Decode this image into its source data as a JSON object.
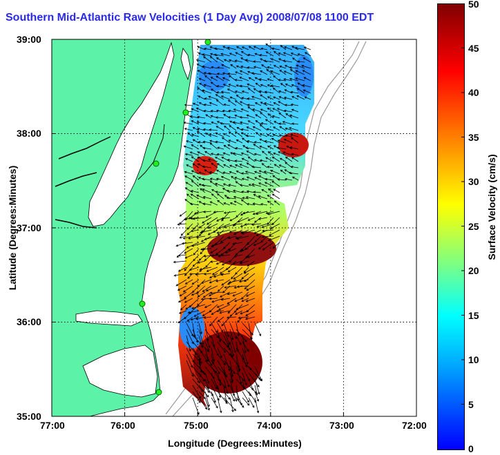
{
  "title": "Southern Mid-Atlantic Raw Velocities (1 Day Avg) 2008/07/08 1100 EDT",
  "axes": {
    "x_label": "Longitude (Degrees:Minutes)",
    "y_label": "Latitude (Degrees:Minutes)",
    "x_ticks": [
      "77:00",
      "76:00",
      "75:00",
      "74:00",
      "73:00",
      "72:00"
    ],
    "y_ticks": [
      "39:00",
      "38:00",
      "37:00",
      "36:00",
      "35:00"
    ]
  },
  "colorbar": {
    "label": "Surface Velocity (cm/s)",
    "ticks": [
      "50",
      "45",
      "40",
      "35",
      "30",
      "25",
      "20",
      "15",
      "10",
      "5",
      "0"
    ],
    "min": 0,
    "max": 50,
    "colors": [
      "#0000ff",
      "#00b0ff",
      "#00ffff",
      "#80ff80",
      "#ffff00",
      "#ff8000",
      "#ff0000",
      "#800000"
    ]
  },
  "map": {
    "land_color": "#5cf2a8",
    "grid": true,
    "lon_range": [
      -77,
      -72
    ],
    "lat_range": [
      35,
      39
    ],
    "stations": [
      "station-1",
      "station-2",
      "station-3",
      "station-4",
      "station-5"
    ]
  }
}
